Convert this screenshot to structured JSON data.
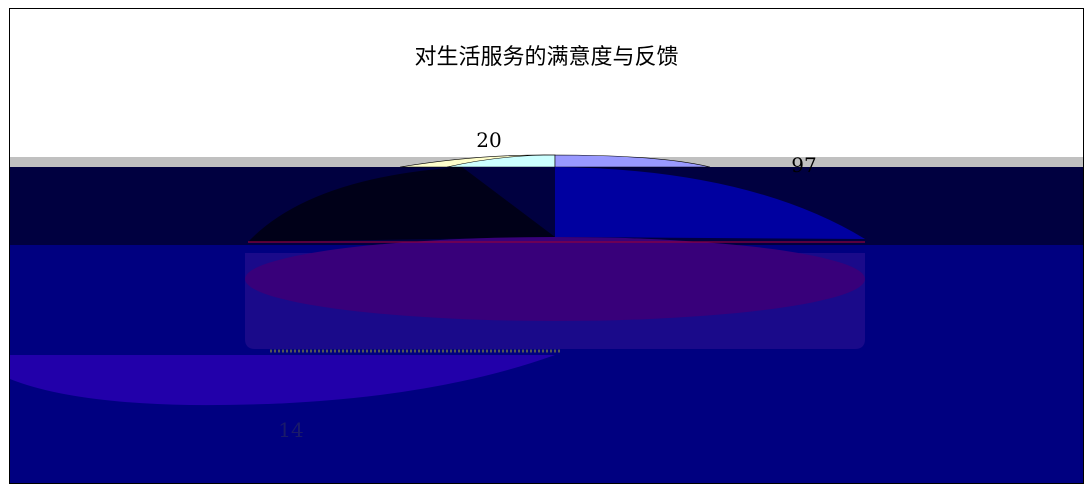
{
  "chart_data": {
    "type": "pie",
    "title": "对生活服务的满意度与反馈",
    "slices": [
      {
        "value": 20,
        "color": "#ccffff"
      },
      {
        "value": 97,
        "color": "#9999ff"
      },
      {
        "value": 64,
        "color": "#993366"
      },
      {
        "value": 14,
        "color": "#000080"
      },
      {
        "value": 5,
        "color": "#ffffcc"
      }
    ],
    "data_labels": [
      "20",
      "97",
      "14"
    ],
    "legend": "none",
    "rendering": "3d pie with corrupted blue overlay bands"
  }
}
